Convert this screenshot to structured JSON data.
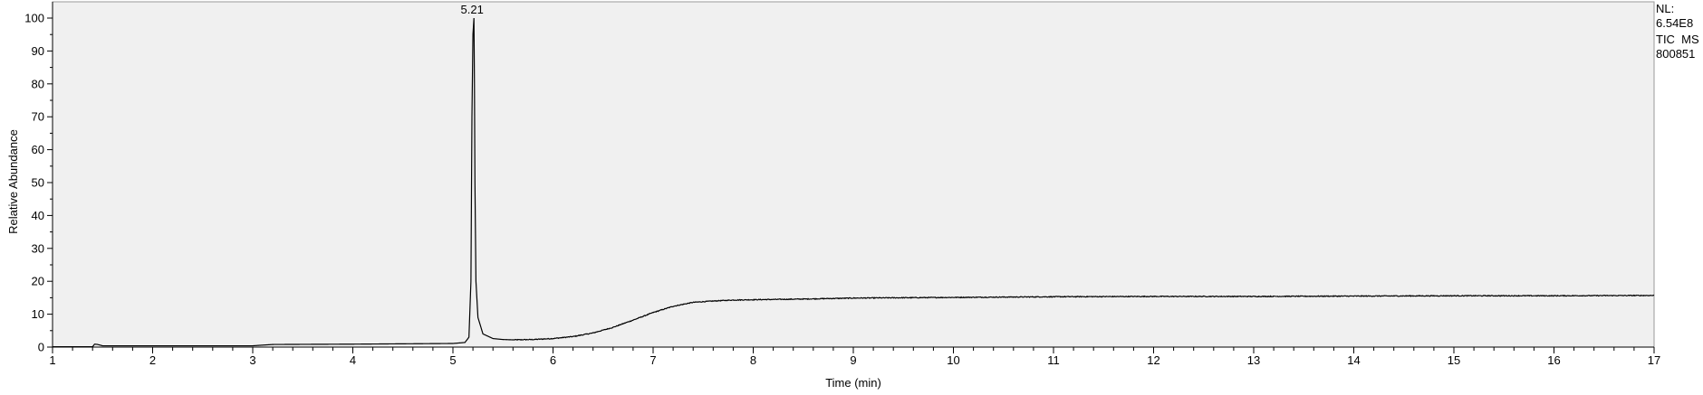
{
  "chart_data": {
    "type": "line",
    "title": "",
    "xlabel": "Time (min)",
    "ylabel": "Relative Abundance",
    "xlim": [
      1,
      17
    ],
    "ylim": [
      0,
      100
    ],
    "xticks": [
      1,
      2,
      3,
      4,
      5,
      6,
      7,
      8,
      9,
      10,
      11,
      12,
      13,
      14,
      15,
      16,
      17
    ],
    "yticks": [
      0,
      10,
      20,
      30,
      40,
      50,
      60,
      70,
      80,
      90,
      100
    ],
    "grid": false,
    "series": [
      {
        "x": [
          1.0,
          1.4,
          1.42,
          1.45,
          1.5,
          2.0,
          2.5,
          3.0,
          3.1,
          3.2,
          4.0,
          4.5,
          5.0,
          5.12,
          5.16,
          5.18,
          5.19,
          5.2,
          5.21,
          5.215,
          5.22,
          5.23,
          5.25,
          5.3,
          5.4,
          5.5,
          5.6,
          5.8,
          6.0,
          6.2,
          6.4,
          6.6,
          6.8,
          7.0,
          7.2,
          7.4,
          7.6,
          7.8,
          8.0,
          8.5,
          9.0,
          10.0,
          11.0,
          12.0,
          13.0,
          14.0,
          15.0,
          16.0,
          17.0
        ],
        "y": [
          0.1,
          0.1,
          0.9,
          0.8,
          0.4,
          0.4,
          0.4,
          0.4,
          0.6,
          0.8,
          0.9,
          1.0,
          1.1,
          1.4,
          3.0,
          20.0,
          70.0,
          95.0,
          100.0,
          80.0,
          50.0,
          20.0,
          9.0,
          4.0,
          2.6,
          2.3,
          2.2,
          2.3,
          2.6,
          3.2,
          4.3,
          6.0,
          8.2,
          10.5,
          12.4,
          13.6,
          14.0,
          14.3,
          14.4,
          14.6,
          14.9,
          15.1,
          15.3,
          15.4,
          15.4,
          15.5,
          15.6,
          15.6,
          15.7
        ]
      }
    ],
    "annotations": [
      {
        "text": "5.21",
        "x": 5.21,
        "y": 100
      }
    ]
  },
  "info": {
    "lines": [
      "NL:",
      "6.54E8",
      "TIC  MS",
      "800851"
    ]
  },
  "colors": {
    "plot_background": "#f0f0f0",
    "trace": "#000000",
    "axis": "#000000"
  }
}
